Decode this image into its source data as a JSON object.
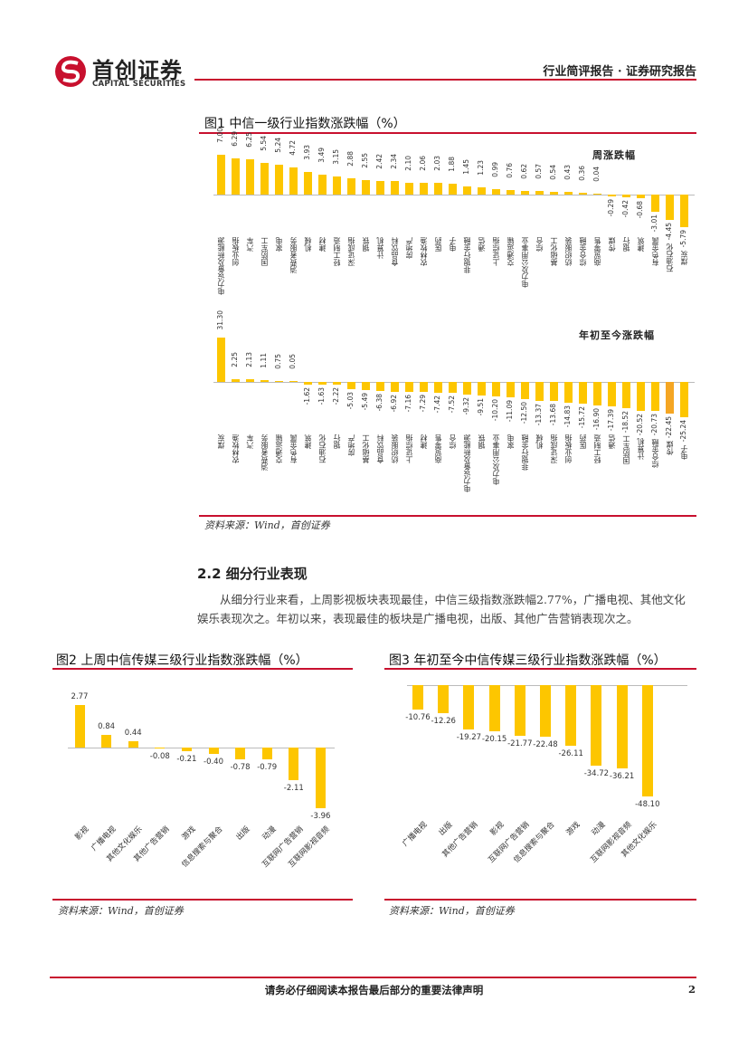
{
  "header": {
    "logo_cn": "首创证券",
    "logo_en": "CAPITAL SECURITIES",
    "right_title": "行业简评报告 · 证券研究报告"
  },
  "fig1": {
    "title": "图1 中信一级行业指数涨跌幅（%）",
    "source": "资料来源：Wind，首创证券"
  },
  "chart_data": [
    {
      "type": "bar",
      "title": "周涨跌幅",
      "ylabel": "%",
      "categories": [
        "电力设备及新能源",
        "创业板指",
        "汽车",
        "国防军工",
        "家电",
        "消费者服务",
        "机械",
        "建材",
        "轻工制造",
        "深证成指",
        "钢铁",
        "计算机",
        "食品饮料",
        "房地产",
        "农林牧渔",
        "医药",
        "电子",
        "非银行金融",
        "通信",
        "上证综指",
        "交通运输",
        "电力及公用事业",
        "综合",
        "基础化工",
        "纺织服装",
        "综合金融",
        "商贸零售",
        "传媒",
        "银行",
        "建筑",
        "有色金属",
        "石油石化",
        "煤炭"
      ],
      "values": [
        7.0,
        6.29,
        6.25,
        5.54,
        5.24,
        4.72,
        3.93,
        3.49,
        3.15,
        2.88,
        2.55,
        2.42,
        2.34,
        2.1,
        2.06,
        2.03,
        1.88,
        1.45,
        1.23,
        0.99,
        0.76,
        0.62,
        0.57,
        0.54,
        0.43,
        0.36,
        0.04,
        -0.29,
        -0.42,
        -0.68,
        -3.01,
        -4.45,
        -5.79
      ]
    },
    {
      "type": "bar",
      "title": "年初至今涨跌幅",
      "ylabel": "%",
      "categories": [
        "煤炭",
        "农林牧渔",
        "汽车",
        "消费者服务",
        "交通运输",
        "有色金属",
        "建筑",
        "石油石化",
        "银行",
        "房地产",
        "基础化工",
        "食品饮料",
        "纺织服装",
        "上证综指",
        "建材",
        "商贸零售",
        "综合",
        "电力设备及新能源",
        "钢铁",
        "电力及公用事业",
        "家电",
        "非银行金融",
        "机械",
        "深证成指",
        "创业板指",
        "医药",
        "轻工制造",
        "通信",
        "国防军工",
        "计算机",
        "综合金融",
        "传媒",
        "电子"
      ],
      "values": [
        31.3,
        2.25,
        2.13,
        1.11,
        0.75,
        0.05,
        -1.62,
        -1.63,
        -2.22,
        -5.03,
        -5.49,
        -6.38,
        -6.92,
        -7.16,
        -7.29,
        -7.42,
        -7.52,
        -9.32,
        -9.51,
        -10.2,
        -11.09,
        -12.5,
        -13.37,
        -13.68,
        -14.83,
        -15.72,
        -16.9,
        -17.39,
        -18.52,
        -20.52,
        -20.73,
        -22.45,
        -25.24
      ],
      "highlight": "传媒"
    },
    {
      "type": "bar",
      "title": "图2 上周中信传媒三级行业指数涨跌幅（%）",
      "categories": [
        "影视",
        "广播电视",
        "其他文化娱乐",
        "其他广告营销",
        "游戏",
        "信息搜索与聚合",
        "出版",
        "动漫",
        "互联网广告营销",
        "互联网影视音频"
      ],
      "values": [
        2.77,
        0.84,
        0.44,
        -0.08,
        -0.21,
        -0.4,
        -0.78,
        -0.79,
        -2.11,
        -3.96
      ]
    },
    {
      "type": "bar",
      "title": "图3 年初至今中信传媒三级行业指数涨跌幅（%）",
      "categories": [
        "广播电视",
        "出版",
        "其他广告营销",
        "影视",
        "互联网广告营销",
        "信息搜索与聚合",
        "游戏",
        "动漫",
        "互联网影视音频",
        "其他文化娱乐"
      ],
      "values": [
        -10.76,
        -12.26,
        -19.27,
        -20.15,
        -21.77,
        -22.48,
        -26.11,
        -34.72,
        -36.21,
        -48.1
      ]
    }
  ],
  "section": {
    "title": "2.2  细分行业表现",
    "paragraph": "从细分行业来看，上周影视板块表现最佳，中信三级指数涨跌幅2.77%，广播电视、其他文化娱乐表现次之。年初以来，表现最佳的板块是广播电视，出版、其他广告营销表现次之。"
  },
  "fig2": {
    "source": "资料来源：Wind，首创证券"
  },
  "fig3": {
    "source": "资料来源：Wind，首创证券"
  },
  "footer": {
    "text": "请务必仔细阅读本报告最后部分的重要法律声明",
    "page": "2"
  },
  "colors": {
    "bar": "#fdc600",
    "highlight": "#f5a623",
    "accent": "#c8102e"
  }
}
